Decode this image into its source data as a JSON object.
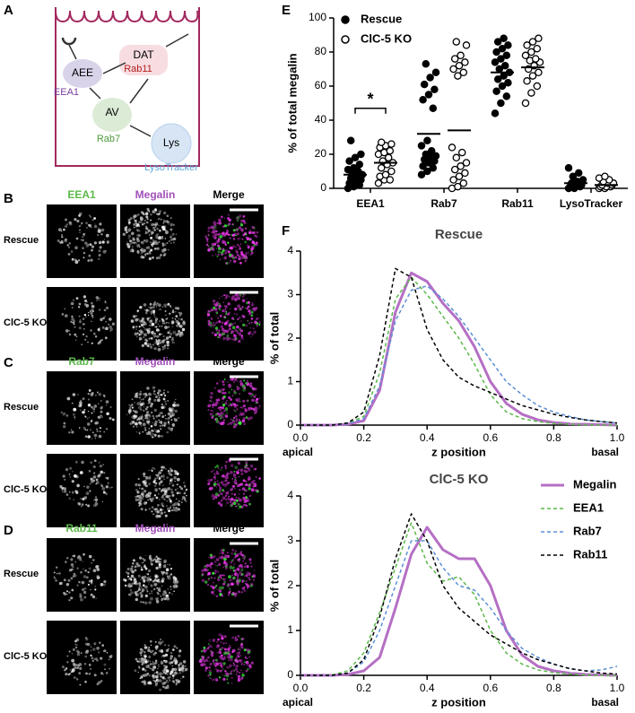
{
  "panel_labels": [
    "A",
    "B",
    "C",
    "D",
    "E",
    "F"
  ],
  "diagram": {
    "nodes": [
      {
        "label": "AEE",
        "marker": "EEA1"
      },
      {
        "label": "DAT",
        "marker": "Rab11"
      },
      {
        "label": "AV",
        "marker": "Rab7"
      },
      {
        "label": "Lys",
        "marker": "LysoTracker"
      }
    ]
  },
  "microscopy": {
    "panels": [
      {
        "columns": [
          "EEA1",
          "Megalin",
          "Merge"
        ],
        "rows": [
          "Rescue",
          "ClC-5 KO"
        ]
      },
      {
        "columns": [
          "Rab7",
          "Megalin",
          "Merge"
        ],
        "rows": [
          "Rescue",
          "ClC-5 KO"
        ]
      },
      {
        "columns": [
          "Rab11",
          "Megalin",
          "Merge"
        ],
        "rows": [
          "Rescue",
          "ClC-5 KO"
        ]
      }
    ]
  },
  "chart_data": [
    {
      "type": "dot",
      "ylabel": "% of total megalin",
      "categories": [
        "EEA1",
        "Rab7",
        "Rab11",
        "LysoTracker"
      ],
      "ylim": [
        0,
        100
      ],
      "yticks": [
        0,
        20,
        40,
        60,
        80,
        100
      ],
      "legend": "upper left",
      "annotations": [
        "*"
      ],
      "series": [
        {
          "name": "Rescue",
          "marker": "filled",
          "color": "#000000",
          "values": [
            8,
            32,
            68,
            3
          ],
          "points": [
            [
              0,
              1,
              2,
              3,
              4,
              5,
              6,
              7,
              8,
              9,
              10,
              11,
              12,
              14,
              16,
              18,
              20,
              28
            ],
            [
              8,
              10,
              12,
              13,
              15,
              16,
              17,
              18,
              19,
              20,
              22,
              25,
              28,
              47,
              52,
              55,
              58,
              61,
              65,
              68,
              73
            ],
            [
              44,
              50,
              54,
              57,
              60,
              62,
              64,
              66,
              68,
              70,
              72,
              74,
              76,
              78,
              80,
              82,
              84,
              86,
              88
            ],
            [
              0,
              0,
              1,
              1,
              2,
              2,
              3,
              4,
              5,
              7,
              9,
              12
            ]
          ]
        },
        {
          "name": "ClC-5 KO",
          "marker": "open",
          "color": "#000000",
          "values": [
            15,
            34,
            71,
            2
          ],
          "points": [
            [
              3,
              5,
              5,
              7,
              8,
              10,
              12,
              14,
              15,
              16,
              18,
              20,
              21,
              22,
              24,
              25,
              26,
              27
            ],
            [
              0,
              1,
              3,
              5,
              7,
              9,
              11,
              13,
              15,
              18,
              21,
              24,
              66,
              68,
              70,
              72,
              74,
              76,
              78,
              84,
              86
            ],
            [
              50,
              56,
              60,
              63,
              66,
              68,
              70,
              72,
              74,
              75,
              76,
              78,
              80,
              82,
              84,
              86,
              88
            ],
            [
              0,
              0,
              1,
              1,
              1,
              2,
              2,
              3,
              3,
              4,
              5,
              6,
              7
            ]
          ]
        }
      ]
    },
    {
      "type": "line",
      "title": "Rescue",
      "xlabel": "z position",
      "ylabel": "% of total",
      "x_end_labels": [
        "apical",
        "basal"
      ],
      "xlim": [
        0,
        1
      ],
      "ylim": [
        0,
        4
      ],
      "xticks": [
        {
          "value": 0,
          "label": "0.0"
        },
        0.2,
        0.4,
        0.6,
        0.8,
        {
          "value": 1,
          "label": "1.0"
        }
      ],
      "yticks": [
        0,
        1,
        2,
        3,
        4
      ],
      "legend": false,
      "x": [
        0,
        0.05,
        0.1,
        0.15,
        0.2,
        0.25,
        0.3,
        0.35,
        0.4,
        0.45,
        0.5,
        0.55,
        0.6,
        0.65,
        0.7,
        0.75,
        0.8,
        0.85,
        0.9,
        0.95,
        1
      ],
      "series": [
        {
          "color": "#b56fc4",
          "dash": "solid",
          "values": [
            0,
            0,
            0,
            0.02,
            0.1,
            0.8,
            2.6,
            3.5,
            3.3,
            2.8,
            2.4,
            1.8,
            1.0,
            0.5,
            0.25,
            0.12,
            0.06,
            0.03,
            0.02,
            0.01,
            0
          ]
        },
        {
          "color": "#5cb84a",
          "dash": "dashed",
          "values": [
            0,
            0,
            0,
            0.05,
            0.2,
            1.2,
            2.9,
            3.4,
            3.0,
            2.5,
            2.0,
            1.4,
            0.7,
            0.3,
            0.15,
            0.08,
            0.04,
            0.02,
            0.01,
            0,
            0
          ]
        },
        {
          "color": "#5b8fd6",
          "dash": "dashed",
          "values": [
            0,
            0,
            0,
            0.03,
            0.15,
            0.9,
            2.4,
            3.1,
            3.2,
            2.9,
            2.5,
            2.0,
            1.5,
            1.0,
            0.7,
            0.45,
            0.3,
            0.2,
            0.12,
            0.08,
            0.05
          ]
        },
        {
          "color": "#000000",
          "dash": "dashed",
          "values": [
            0,
            0,
            0,
            0.05,
            0.3,
            1.6,
            3.6,
            3.4,
            2.2,
            1.5,
            1.1,
            0.9,
            0.75,
            0.6,
            0.45,
            0.35,
            0.25,
            0.18,
            0.12,
            0.08,
            0.05
          ]
        }
      ]
    },
    {
      "type": "line",
      "title": "ClC-5 KO",
      "xlabel": "z position",
      "ylabel": "% of total",
      "x_end_labels": [
        "apical",
        "basal"
      ],
      "xlim": [
        0,
        1
      ],
      "ylim": [
        0,
        4
      ],
      "xticks": [
        {
          "value": 0,
          "label": "0.0"
        },
        0.2,
        0.4,
        0.6,
        0.8,
        {
          "value": 1,
          "label": "1.0"
        }
      ],
      "yticks": [
        0,
        1,
        2,
        3,
        4
      ],
      "legend": "upper right",
      "x": [
        0,
        0.05,
        0.1,
        0.15,
        0.2,
        0.25,
        0.3,
        0.35,
        0.4,
        0.45,
        0.5,
        0.55,
        0.6,
        0.65,
        0.7,
        0.75,
        0.8,
        0.85,
        0.9,
        0.95,
        1
      ],
      "series": [
        {
          "name": "Megalin",
          "color": "#b56fc4",
          "dash": "solid",
          "values": [
            0,
            0,
            0,
            0.02,
            0.1,
            0.4,
            1.5,
            2.7,
            3.3,
            2.8,
            2.6,
            2.6,
            2.0,
            1.0,
            0.45,
            0.2,
            0.1,
            0.05,
            0.02,
            0.01,
            0
          ]
        },
        {
          "name": "EEA1",
          "color": "#5cb84a",
          "dash": "dashed",
          "values": [
            0,
            0,
            0.01,
            0.1,
            0.5,
            1.4,
            2.4,
            3.4,
            2.5,
            2.1,
            2.2,
            1.8,
            1.0,
            0.5,
            0.25,
            0.12,
            0.06,
            0.03,
            0.01,
            0,
            0
          ]
        },
        {
          "name": "Rab7",
          "color": "#5b8fd6",
          "dash": "dashed",
          "values": [
            0,
            0,
            0,
            0.05,
            0.3,
            1.0,
            2.0,
            3.0,
            3.0,
            2.4,
            2.0,
            1.9,
            1.5,
            1.0,
            0.6,
            0.4,
            0.25,
            0.15,
            0.1,
            0.12,
            0.2
          ]
        },
        {
          "name": "Rab11",
          "color": "#000000",
          "dash": "dashed",
          "values": [
            0,
            0,
            0,
            0.05,
            0.35,
            1.3,
            2.6,
            3.6,
            3.0,
            2.0,
            1.5,
            1.2,
            0.9,
            0.7,
            0.5,
            0.35,
            0.25,
            0.15,
            0.1,
            0.05,
            0.03
          ]
        }
      ]
    }
  ]
}
